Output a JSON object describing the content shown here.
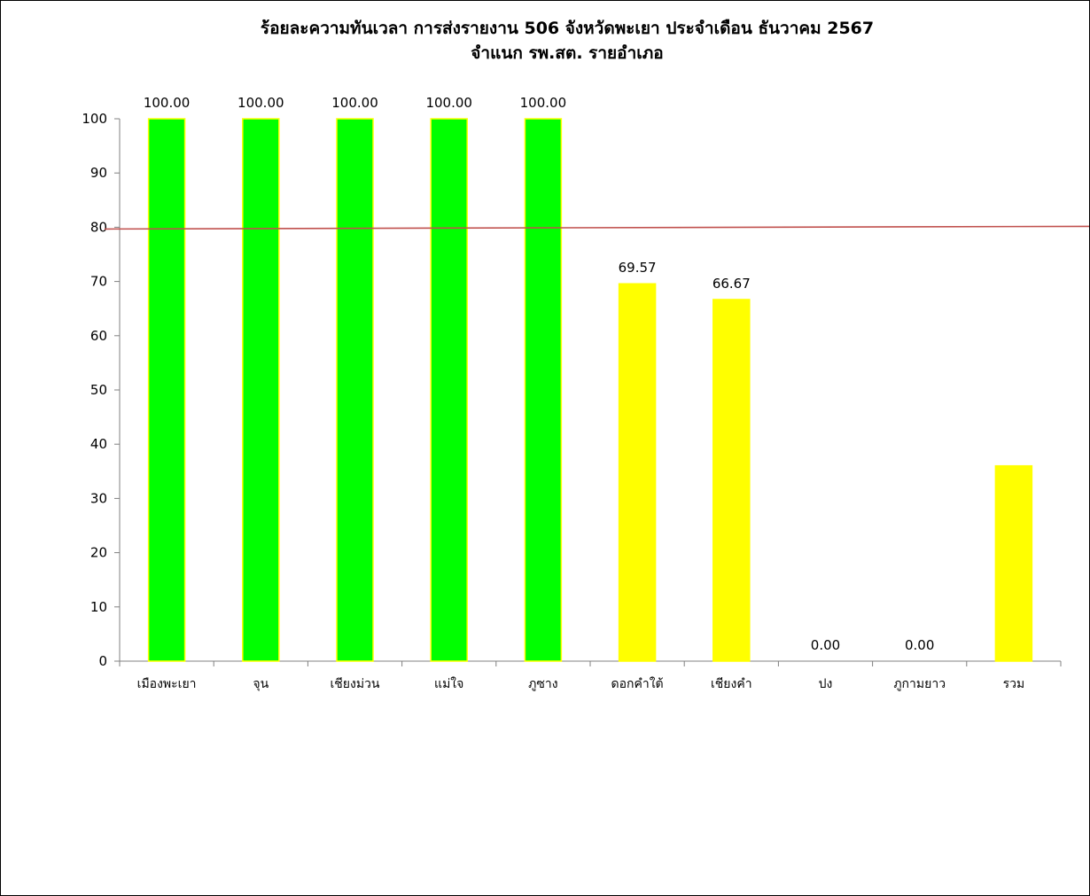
{
  "chart_data": {
    "type": "bar",
    "title": "ร้อยละความทันเวลา การส่งรายงาน 506 จังหวัดพะเยา  ประจำเดือน ธันวาคม 2567",
    "subtitle": "จำแนก รพ.สต. รายอำเภอ",
    "xlabel": "",
    "ylabel": "",
    "categories": [
      "เมืองพะเยา",
      "จุน",
      "เชียงม่วน",
      "แม่ใจ",
      "ภูซาง",
      "ดอกคำใต้",
      "เชียงคำ",
      "ปง",
      "ภูกามยาว",
      "รวม"
    ],
    "values": [
      100,
      100,
      100,
      100,
      100,
      69.57,
      66.67,
      0,
      0,
      36
    ],
    "data_labels": [
      "100.00",
      "100.00",
      "100.00",
      "100.00",
      "100.00",
      "69.57",
      "66.67",
      "0.00",
      "0.00",
      ""
    ],
    "bar_colors": [
      "#00ff00",
      "#00ff00",
      "#00ff00",
      "#00ff00",
      "#00ff00",
      "#ffff00",
      "#ffff00",
      "#ffff00",
      "#ffff00",
      "#ffff00"
    ],
    "bar_edge_color": "#ffff00",
    "ylim": [
      0,
      100
    ],
    "yticks": [
      0,
      10,
      20,
      30,
      40,
      50,
      60,
      70,
      80,
      90,
      100
    ],
    "target_line": {
      "value": 80,
      "color": "#c0504d"
    },
    "grid": false,
    "legend": "none"
  }
}
